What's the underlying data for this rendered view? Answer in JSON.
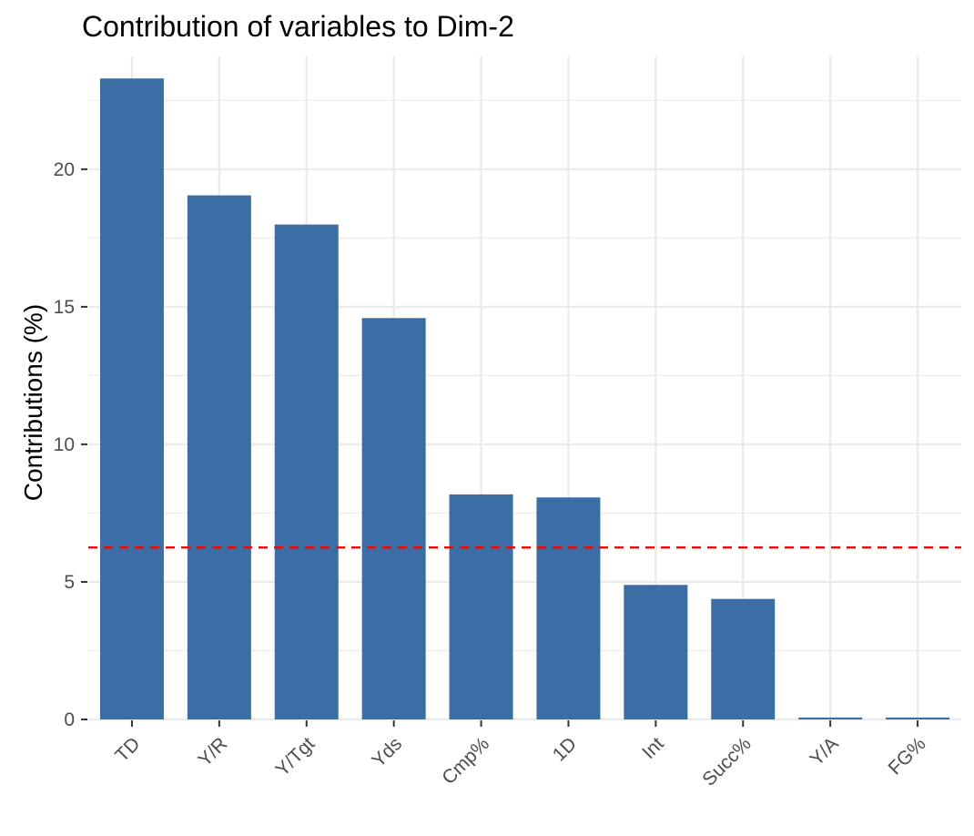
{
  "chart_data": {
    "type": "bar",
    "title": "Contribution of variables to Dim-2",
    "xlabel": "",
    "ylabel": "Contributions (%)",
    "categories": [
      "TD",
      "Y/R",
      "Y/Tgt",
      "Yds",
      "Cmp%",
      "1D",
      "Int",
      "Succ%",
      "Y/A",
      "FG%"
    ],
    "values": [
      23.3,
      19.05,
      17.99,
      14.59,
      8.18,
      8.07,
      4.89,
      4.38,
      0.07,
      0.07
    ],
    "ylim": [
      0,
      24.1
    ],
    "yticks": [
      0,
      5,
      10,
      15,
      20
    ],
    "grid": true,
    "reference_line": {
      "value": 6.25,
      "color": "#ff0000",
      "style": "dashed"
    },
    "colors": {
      "bar": "#3a6ea5",
      "grid": "#ebebeb",
      "reference": "#ff0000"
    }
  }
}
